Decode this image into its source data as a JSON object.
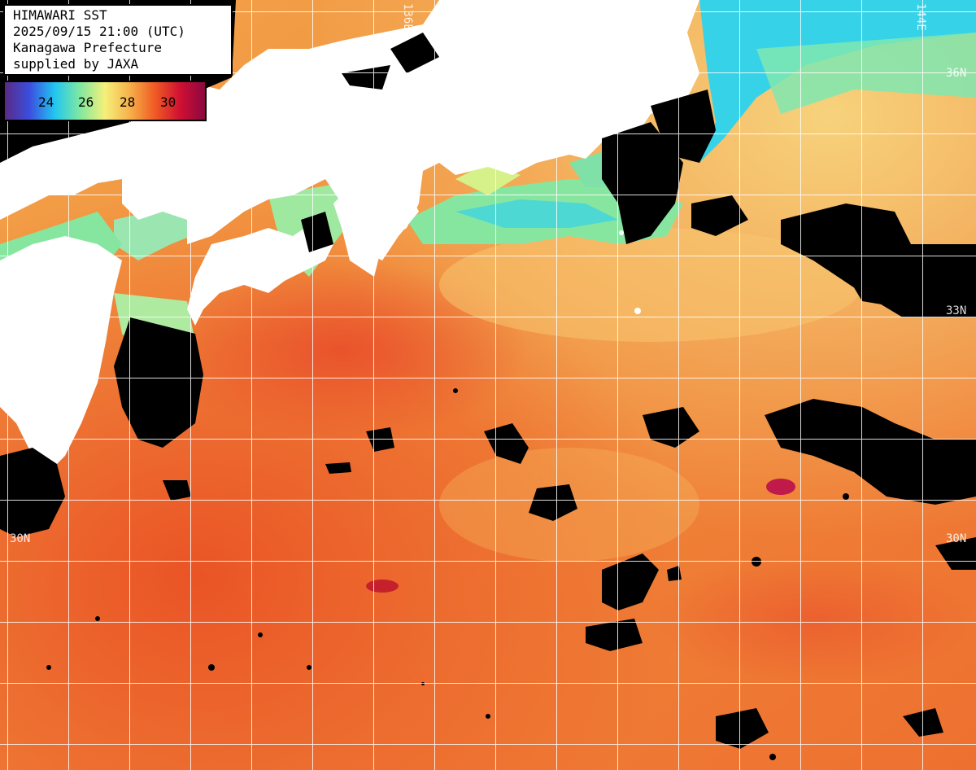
{
  "title_box": {
    "line1": "HIMAWARI SST",
    "line2": "2025/09/15 21:00 (UTC)",
    "line3": "Kanagawa Prefecture",
    "line4": "supplied by JAXA"
  },
  "legend": {
    "ticks": [
      "24",
      "26",
      "28",
      "30"
    ],
    "gradient_colors": [
      "#5a2a86",
      "#3b4fe0",
      "#22c6f0",
      "#7fe8a0",
      "#f5f07a",
      "#f7b04a",
      "#ef5a24",
      "#d01032",
      "#8a0840"
    ]
  },
  "graticule": {
    "lon_labels": [
      "136E",
      "144E"
    ],
    "lat_labels": [
      "36N",
      "33N",
      "30N",
      "30N"
    ]
  },
  "colors": {
    "ocean_warm": "#f28a3c",
    "ocean_hot": "#ea5a26",
    "ocean_cool": "#f6c070",
    "coastal_green": "#86e6a0",
    "coastal_cyan": "#36d2e8",
    "land": "#ffffff",
    "cloud_mask": "#000000",
    "grid": "#ffffff"
  }
}
